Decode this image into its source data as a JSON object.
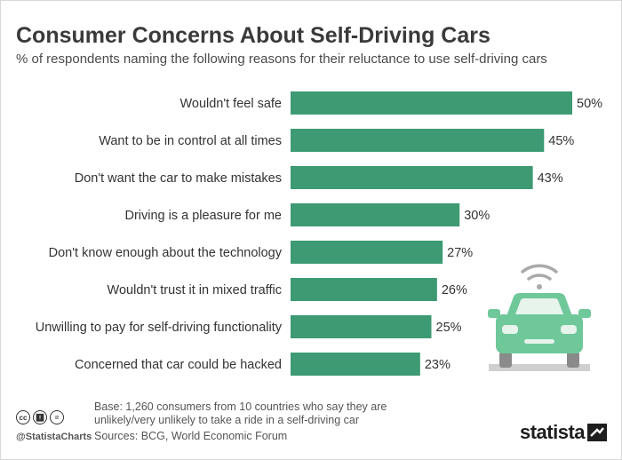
{
  "header": {
    "title": "Consumer Concerns About Self-Driving Cars",
    "subtitle": "% of respondents naming the following reasons for their reluctance to use self-driving cars"
  },
  "chart_data": {
    "type": "bar",
    "orientation": "horizontal",
    "title": "Consumer Concerns About Self-Driving Cars",
    "subtitle": "% of respondents naming the following reasons for their reluctance to use self-driving cars",
    "categories": [
      "Wouldn't feel safe",
      "Want to be in control at all times",
      "Don't want the car to make mistakes",
      "Driving is a pleasure for me",
      "Don't know enough about the technology",
      "Wouldn't trust it in mixed traffic",
      "Unwilling to pay for self-driving functionality",
      "Concerned that car could be hacked"
    ],
    "values": [
      50,
      45,
      43,
      30,
      27,
      26,
      25,
      23
    ],
    "value_labels": [
      "50%",
      "45%",
      "43%",
      "30%",
      "27%",
      "26%",
      "25%",
      "23%"
    ],
    "unit": "%",
    "xlim": [
      0,
      50
    ],
    "grid": false,
    "legend": "none",
    "bar_color": "#3d9a73"
  },
  "footer": {
    "note": "Base: 1,260 consumers from 10 countries who say they are unlikely/very unlikely to take a ride in a self-driving car",
    "sources": "Sources: BCG, World Economic Forum",
    "handle": "@StatistaCharts",
    "brand": "statista"
  },
  "colors": {
    "bar": "#3d9a73",
    "car_body": "#6fc89a",
    "car_window": "#e6f4ec",
    "wifi": "#aaaaaa",
    "title": "#3a3a3a"
  }
}
